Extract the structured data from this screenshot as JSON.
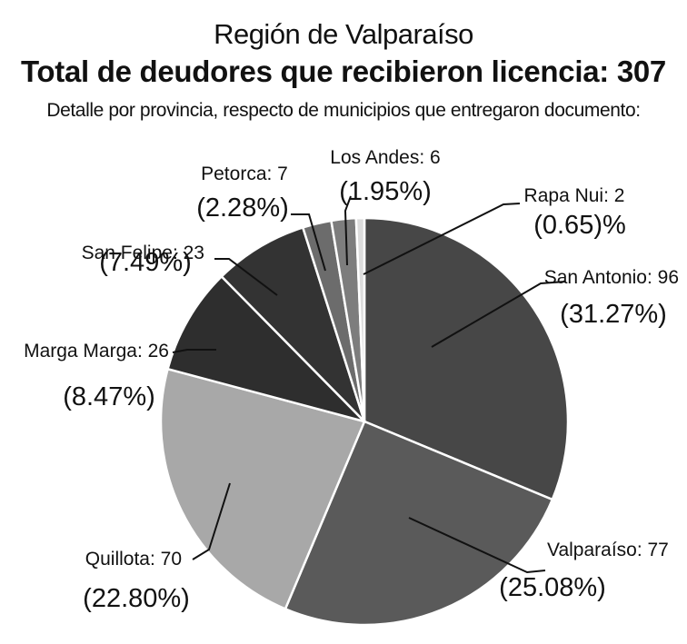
{
  "chart_data": {
    "type": "pie",
    "title": "Región de Valparaíso",
    "subtitle": "Total de deudores que recibieron licencia: 307",
    "caption": "Detalle por provincia, respecto de municipios que entregaron documento:",
    "slices": [
      {
        "label": "San Antonio: 96",
        "pct_label": "(31.27%)",
        "value": 96,
        "percent": 31.27,
        "color": "#474747"
      },
      {
        "label": "Valparaíso: 77",
        "pct_label": "(25.08%)",
        "value": 77,
        "percent": 25.08,
        "color": "#5a5a5a"
      },
      {
        "label": "Quillota: 70",
        "pct_label": "(22.80%)",
        "value": 70,
        "percent": 22.8,
        "color": "#a8a8a8"
      },
      {
        "label": "Marga Marga: 26",
        "pct_label": "(8.47%)",
        "value": 26,
        "percent": 8.47,
        "color": "#2e2e2e"
      },
      {
        "label": "San Felipe: 23",
        "pct_label": "(7.49%)",
        "value": 23,
        "percent": 7.49,
        "color": "#333333"
      },
      {
        "label": "Petorca: 7",
        "pct_label": "(2.28%)",
        "value": 7,
        "percent": 2.28,
        "color": "#6c6c6c"
      },
      {
        "label": "Los Andes: 6",
        "pct_label": "(1.95%)",
        "value": 6,
        "percent": 1.95,
        "color": "#7d7d7d"
      },
      {
        "label": "Rapa Nui: 2",
        "pct_label": "(0.65)%",
        "value": 2,
        "percent": 0.65,
        "color": "#dcdcdc"
      }
    ]
  }
}
